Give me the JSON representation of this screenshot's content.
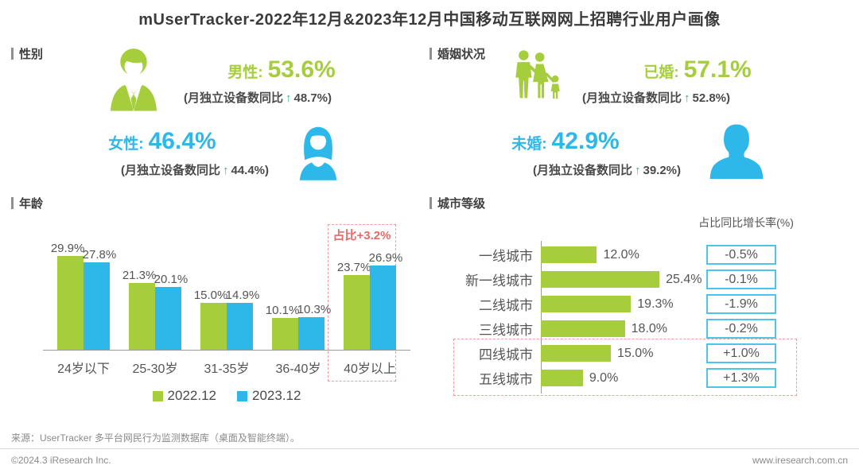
{
  "title": "mUserTracker-2022年12月&2023年12月中国移动互联网网上招聘行业用户画像",
  "colors": {
    "green": "#a5cd3c",
    "blue": "#2eb7e9",
    "highlight_red": "#e56a6a",
    "box_border": "#4ec4ea"
  },
  "gender": {
    "section_label": "性别",
    "male": {
      "label": "男性:",
      "value": "53.6%",
      "yoy_prefix": "(月独立设备数同比",
      "arrow": "↑",
      "yoy_value": "48.7%)"
    },
    "female": {
      "label": "女性:",
      "value": "46.4%",
      "yoy_prefix": "(月独立设备数同比",
      "arrow": "↑",
      "yoy_value": "44.4%)"
    }
  },
  "marital": {
    "section_label": "婚姻状况",
    "married": {
      "label": "已婚:",
      "value": "57.1%",
      "yoy_prefix": "(月独立设备数同比",
      "arrow": "↑",
      "yoy_value": "52.8%)"
    },
    "unmarried": {
      "label": "未婚:",
      "value": "42.9%",
      "yoy_prefix": "(月独立设备数同比",
      "arrow": "↑",
      "yoy_value": "39.2%)"
    }
  },
  "age_section_label": "年龄",
  "city_section_label": "城市等级",
  "chart_data": [
    {
      "type": "bar",
      "title": "年龄",
      "categories": [
        "24岁以下",
        "25-30岁",
        "31-35岁",
        "36-40岁",
        "40岁以上"
      ],
      "series": [
        {
          "name": "2022.12",
          "color": "#a5cd3c",
          "values": [
            29.9,
            21.3,
            15.0,
            10.1,
            23.7
          ]
        },
        {
          "name": "2023.12",
          "color": "#2eb7e9",
          "values": [
            27.8,
            20.1,
            14.9,
            10.3,
            26.9
          ]
        }
      ],
      "unit": "%",
      "ylim": [
        0,
        32
      ],
      "grid": false,
      "legend_position": "bottom",
      "annotation": {
        "text": "占比+3.2%",
        "target_category": "40岁以上"
      }
    },
    {
      "type": "bar",
      "orientation": "horizontal",
      "title": "城市等级",
      "categories": [
        "一线城市",
        "新一线城市",
        "二线城市",
        "三线城市",
        "四线城市",
        "五线城市"
      ],
      "values": [
        12.0,
        25.4,
        19.3,
        18.0,
        15.0,
        9.0
      ],
      "unit": "%",
      "growth_header": "占比同比增长率(%)",
      "growth_values": [
        "-0.5%",
        "-0.1%",
        "-1.9%",
        "-0.2%",
        "+1.0%",
        "+1.3%"
      ],
      "highlighted_categories": [
        "四线城市",
        "五线城市"
      ]
    }
  ],
  "footer": {
    "source": "来源：UserTracker 多平台网民行为监测数据库（桌面及智能终端）。",
    "copyright": "©2024.3 iResearch Inc.",
    "website": "www.iresearch.com.cn"
  }
}
